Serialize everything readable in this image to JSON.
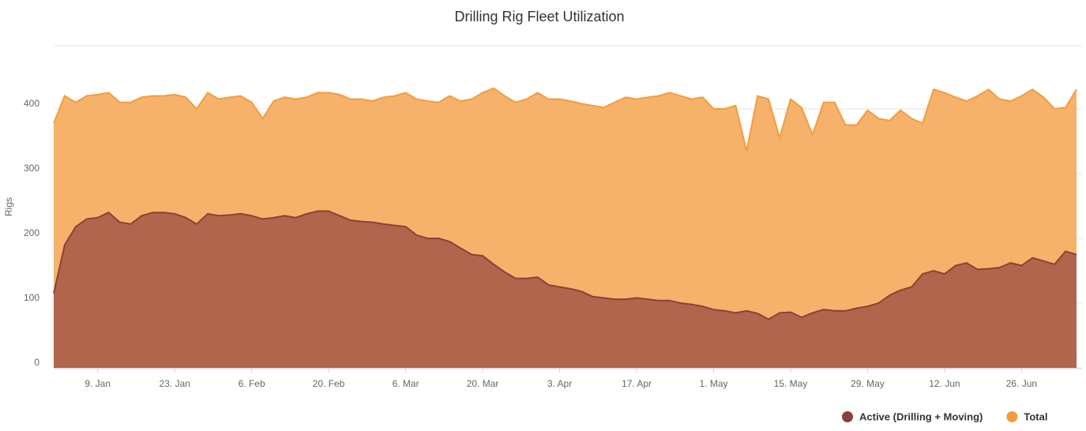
{
  "chart_data": {
    "type": "area",
    "title": "Drilling Rig Fleet Utilization",
    "y_label": "Rigs",
    "x": [
      1,
      3,
      5,
      7,
      9,
      11,
      13,
      15,
      17,
      19,
      21,
      23,
      25,
      27,
      29,
      31,
      33,
      35,
      37,
      39,
      41,
      43,
      45,
      47,
      49,
      51,
      53,
      55,
      57,
      59,
      61,
      63,
      65,
      67,
      69,
      71,
      73,
      75,
      77,
      79,
      81,
      83,
      85,
      87,
      89,
      91,
      93,
      95,
      97,
      99,
      101,
      103,
      105,
      107,
      109,
      111,
      113,
      115,
      117,
      119,
      121,
      123,
      125,
      127,
      129,
      131,
      133,
      135,
      137,
      139,
      141,
      143,
      145,
      147,
      149,
      151,
      153,
      155,
      157,
      159,
      161,
      163,
      165,
      167,
      169,
      171,
      173,
      175,
      177,
      179,
      181,
      183,
      185,
      187
    ],
    "xlim": [
      1,
      188
    ],
    "xticks": [
      {
        "value": 9,
        "label": "9. Jan"
      },
      {
        "value": 23,
        "label": "23. Jan"
      },
      {
        "value": 37,
        "label": "6. Feb"
      },
      {
        "value": 51,
        "label": "20. Feb"
      },
      {
        "value": 65,
        "label": "6. Mar"
      },
      {
        "value": 79,
        "label": "20. Mar"
      },
      {
        "value": 93,
        "label": "3. Apr"
      },
      {
        "value": 107,
        "label": "17. Apr"
      },
      {
        "value": 121,
        "label": "1. May"
      },
      {
        "value": 135,
        "label": "15. May"
      },
      {
        "value": 149,
        "label": "29. May"
      },
      {
        "value": 163,
        "label": "12. Jun"
      },
      {
        "value": 177,
        "label": "26. Jun"
      }
    ],
    "ylim": [
      0,
      495
    ],
    "yticks": [
      0,
      100,
      200,
      300,
      400
    ],
    "grid": true,
    "legend": "bottom-right",
    "series": [
      {
        "name": "Total",
        "color": "#f39c3c",
        "fill": "#f6b26b",
        "values": [
          378,
          420,
          410,
          420,
          422,
          425,
          410,
          410,
          418,
          420,
          420,
          422,
          418,
          400,
          425,
          415,
          418,
          420,
          410,
          385,
          412,
          418,
          415,
          418,
          425,
          425,
          422,
          415,
          415,
          412,
          418,
          420,
          425,
          415,
          412,
          410,
          420,
          412,
          415,
          425,
          432,
          420,
          410,
          415,
          425,
          415,
          415,
          412,
          408,
          405,
          402,
          410,
          418,
          415,
          418,
          420,
          425,
          420,
          415,
          418,
          400,
          400,
          405,
          335,
          420,
          415,
          355,
          415,
          402,
          360,
          410,
          410,
          375,
          375,
          398,
          385,
          382,
          398,
          385,
          378,
          430,
          425,
          418,
          412,
          420,
          430,
          415,
          412,
          420,
          430,
          418,
          400,
          402,
          430
        ]
      },
      {
        "name": "Active (Drilling + Moving)",
        "color": "#8b4236",
        "fill": "#b0654c",
        "values": [
          115,
          190,
          218,
          230,
          232,
          240,
          225,
          222,
          235,
          240,
          240,
          238,
          232,
          222,
          238,
          235,
          236,
          238,
          235,
          230,
          232,
          235,
          232,
          238,
          242,
          242,
          235,
          228,
          226,
          225,
          222,
          220,
          218,
          205,
          200,
          200,
          195,
          185,
          175,
          173,
          160,
          148,
          138,
          138,
          140,
          128,
          125,
          122,
          118,
          110,
          108,
          106,
          106,
          108,
          106,
          104,
          104,
          100,
          98,
          95,
          90,
          88,
          85,
          88,
          84,
          75,
          85,
          86,
          78,
          85,
          90,
          88,
          88,
          92,
          95,
          100,
          112,
          120,
          125,
          145,
          150,
          145,
          158,
          162,
          152,
          153,
          155,
          162,
          158,
          170,
          165,
          160,
          180,
          175
        ]
      }
    ]
  }
}
